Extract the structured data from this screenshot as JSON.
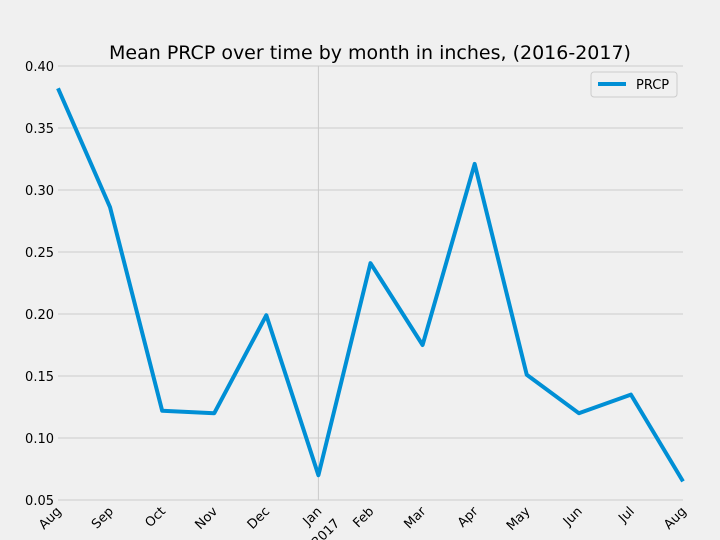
{
  "chart_data": {
    "type": "line",
    "title": "Mean PRCP over time by month in inches, (2016-2017)",
    "xlabel": "",
    "ylabel": "",
    "x": [
      "2016-08",
      "2016-09",
      "2016-10",
      "2016-11",
      "2016-12",
      "2017-01",
      "2017-02",
      "2017-03",
      "2017-04",
      "2017-05",
      "2017-06",
      "2017-07",
      "2017-08"
    ],
    "x_tick_labels": [
      "Aug",
      "Sep",
      "Oct",
      "Nov",
      "Dec",
      "Jan",
      "Feb",
      "Mar",
      "Apr",
      "May",
      "Jun",
      "Jul",
      "Aug"
    ],
    "x_tick_sublabels": [
      "",
      "",
      "",
      "",
      "",
      "2017",
      "",
      "",
      "",
      "",
      "",
      "",
      ""
    ],
    "series": [
      {
        "name": "PRCP",
        "values": [
          0.382,
          0.286,
          0.122,
          0.12,
          0.199,
          0.07,
          0.241,
          0.175,
          0.321,
          0.151,
          0.12,
          0.135,
          0.065
        ]
      }
    ],
    "ylim": [
      0.05,
      0.4
    ],
    "yticks": [
      0.05,
      0.1,
      0.15,
      0.2,
      0.25,
      0.3,
      0.35,
      0.4
    ],
    "ytick_labels": [
      "0.05",
      "0.10",
      "0.15",
      "0.20",
      "0.25",
      "0.30",
      "0.35",
      "0.40"
    ],
    "grid": true,
    "legend": "top-right",
    "colors": {
      "series": "#008fd5",
      "grid": "#cbcbcb",
      "background": "#f0f0f0"
    }
  }
}
